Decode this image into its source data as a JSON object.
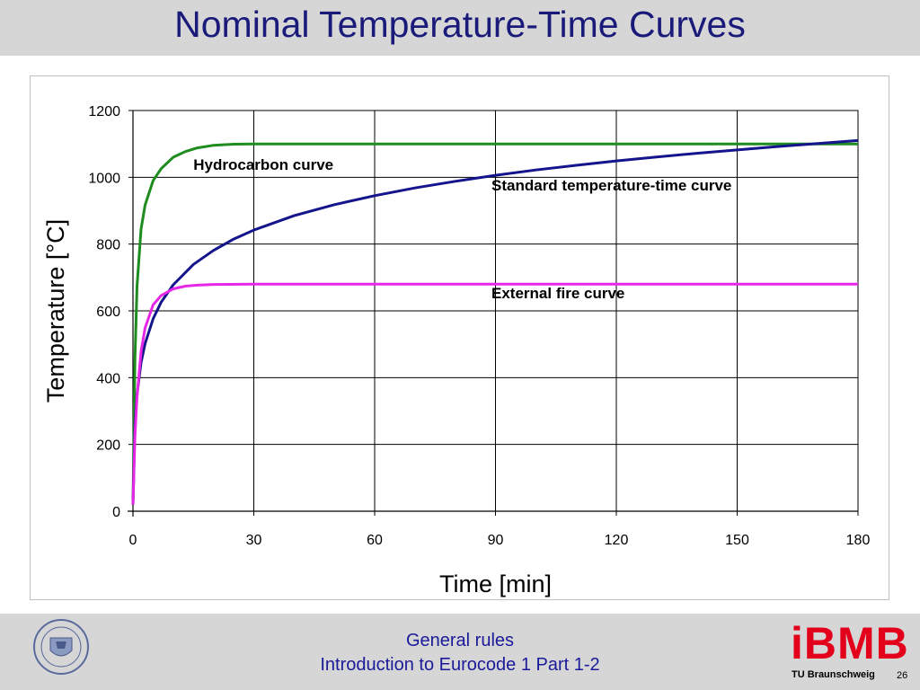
{
  "slide": {
    "title": "Nominal Temperature-Time Curves",
    "footer_line1": "General rules",
    "footer_line2": "Introduction to Eurocode 1 Part 1-2",
    "logo_text": "iBMB",
    "institution": "TU Braunschweig",
    "page_number": "26",
    "seal_icon": "university-seal-icon"
  },
  "colors": {
    "header_bg": "#d6d6d6",
    "title": "#1a1a7a",
    "footer_text": "#1a1a9a",
    "logo": "#e3001b",
    "standard": "#14148c",
    "hydrocarbon": "#1e8c1e",
    "external": "#e628e6"
  },
  "chart_data": {
    "type": "line",
    "title": "",
    "xlabel": "Time [min]",
    "ylabel": "Temperature [°C]",
    "xlim": [
      0,
      180
    ],
    "ylim": [
      0,
      1200
    ],
    "xticks": [
      0,
      30,
      60,
      90,
      120,
      150,
      180
    ],
    "yticks": [
      0,
      200,
      400,
      600,
      800,
      1000,
      1200
    ],
    "grid": true,
    "legend": "none",
    "series": [
      {
        "name": "Hydrocarbon curve",
        "color": "#1e8c1e",
        "x": [
          0,
          0.5,
          1,
          2,
          3,
          5,
          7,
          10,
          13,
          16,
          20,
          25,
          30,
          40,
          60,
          90,
          120,
          150,
          180
        ],
        "y": [
          20,
          455,
          673,
          845,
          917,
          990,
          1026,
          1060,
          1077,
          1088,
          1096,
          1099,
          1100,
          1100,
          1100,
          1100,
          1100,
          1100,
          1100
        ]
      },
      {
        "name": "Standard temperature-time curve",
        "color": "#14148c",
        "x": [
          0,
          0.5,
          1,
          2,
          3,
          5,
          7,
          10,
          15,
          20,
          25,
          30,
          40,
          50,
          60,
          70,
          80,
          90,
          100,
          110,
          120,
          130,
          140,
          150,
          160,
          170,
          180
        ],
        "y": [
          20,
          261,
          349,
          445,
          502,
          576,
          626,
          678,
          739,
          781,
          815,
          842,
          885,
          918,
          945,
          968,
          988,
          1006,
          1022,
          1036,
          1049,
          1061,
          1072,
          1082,
          1092,
          1101,
          1110
        ]
      },
      {
        "name": "External fire curve",
        "color": "#e628e6",
        "x": [
          0,
          0.5,
          1,
          2,
          3,
          5,
          7,
          10,
          13,
          16,
          20,
          30,
          60,
          90,
          120,
          150,
          180
        ],
        "y": [
          20,
          225,
          342,
          478,
          549,
          618,
          646,
          666,
          674,
          677,
          679,
          680,
          680,
          680,
          680,
          680,
          680
        ]
      }
    ],
    "annotations": [
      {
        "text": "Hydrocarbon curve",
        "x": 15,
        "y": 1023
      },
      {
        "text": "Standard temperature-time curve",
        "x": 89,
        "y": 960
      },
      {
        "text": "External fire curve",
        "x": 89,
        "y": 638
      }
    ]
  }
}
